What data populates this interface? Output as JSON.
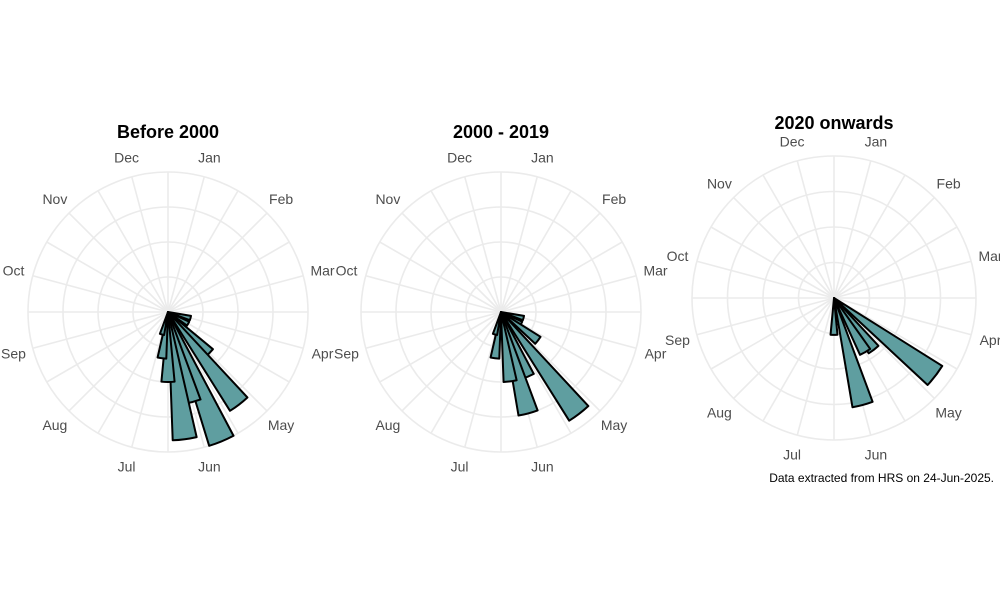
{
  "chart_data": [
    {
      "type": "polar-bar",
      "title": "Before 2000",
      "months": [
        "Jan",
        "Feb",
        "Mar",
        "Apr",
        "May",
        "Jun",
        "Jul",
        "Aug",
        "Sep",
        "Oct",
        "Nov",
        "Dec"
      ],
      "bar_color": "#5f9ea0",
      "bars": [
        {
          "position": 4.0,
          "value": 2
        },
        {
          "position": 4.5,
          "value": 2
        },
        {
          "position": 5.0,
          "value": 5
        },
        {
          "position": 5.25,
          "value": 10
        },
        {
          "position": 5.75,
          "value": 12
        },
        {
          "position": 6.0,
          "value": 8
        },
        {
          "position": 6.25,
          "value": 11
        },
        {
          "position": 6.5,
          "value": 6
        },
        {
          "position": 6.75,
          "value": 4
        },
        {
          "position": 7.0,
          "value": 2
        }
      ],
      "r_max": 12,
      "grid": true
    },
    {
      "type": "polar-bar",
      "title": "2000 - 2019",
      "months": [
        "Jan",
        "Feb",
        "Mar",
        "Apr",
        "May",
        "Jun",
        "Jul",
        "Aug",
        "Sep",
        "Oct",
        "Nov",
        "Dec"
      ],
      "bar_color": "#5f9ea0",
      "bars": [
        {
          "position": 4.0,
          "value": 2
        },
        {
          "position": 4.5,
          "value": 2
        },
        {
          "position": 4.75,
          "value": 4
        },
        {
          "position": 5.25,
          "value": 11
        },
        {
          "position": 5.75,
          "value": 6
        },
        {
          "position": 6.0,
          "value": 9
        },
        {
          "position": 6.25,
          "value": 6
        },
        {
          "position": 6.75,
          "value": 4
        },
        {
          "position": 7.0,
          "value": 2
        }
      ],
      "r_max": 12,
      "grid": true
    },
    {
      "type": "polar-bar",
      "title": "2020 onwards",
      "months": [
        "Jan",
        "Feb",
        "Mar",
        "Apr",
        "May",
        "Jun",
        "Jul",
        "Aug",
        "Sep",
        "Oct",
        "Nov",
        "Dec"
      ],
      "bar_color": "#5f9ea0",
      "bars": [
        {
          "position": 4.75,
          "value": 4.5
        },
        {
          "position": 5.25,
          "value": 2.3
        },
        {
          "position": 5.5,
          "value": 2.2
        },
        {
          "position": 6.0,
          "value": 3.9
        },
        {
          "position": 6.5,
          "value": 1.3
        }
      ],
      "r_max": 5,
      "grid": true
    }
  ],
  "caption": "Data extracted from HRS on 24-Jun-2025."
}
